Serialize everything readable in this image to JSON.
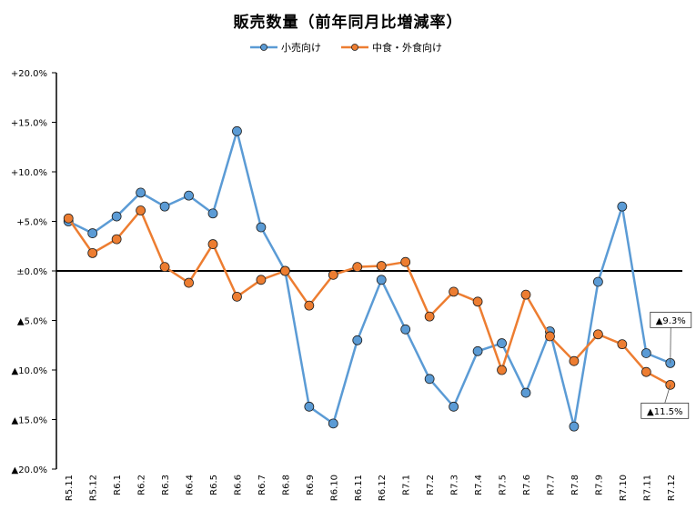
{
  "chart_data": {
    "type": "line",
    "title": "販売数量（前年同月比増減率）",
    "categories": [
      "R5.11",
      "R5.12",
      "R6.1",
      "R6.2",
      "R6.3",
      "R6.4",
      "R6.5",
      "R6.6",
      "R6.7",
      "R6.8",
      "R6.9",
      "R6.10",
      "R6.11",
      "R6.12",
      "R7.1",
      "R7.2",
      "R7.3",
      "R7.4",
      "R7.5",
      "R7.6",
      "R7.7",
      "R7.8",
      "R7.9",
      "R7.10",
      "R7.11",
      "R7.12"
    ],
    "series": [
      {
        "name": "小売向け",
        "color": "#5b9bd5",
        "values": [
          5.0,
          3.8,
          5.5,
          7.9,
          6.5,
          7.6,
          5.8,
          14.1,
          4.4,
          0.0,
          -13.7,
          -15.4,
          -7.0,
          -0.9,
          -5.9,
          -10.9,
          -13.7,
          -8.1,
          -7.3,
          -12.3,
          -6.1,
          -15.7,
          -1.1,
          6.5,
          -8.3,
          -9.3
        ]
      },
      {
        "name": "中食・外食向け",
        "color": "#ed7d31",
        "values": [
          5.3,
          1.8,
          3.2,
          6.1,
          0.4,
          -1.2,
          2.7,
          -2.6,
          -0.9,
          0.0,
          -3.5,
          -0.4,
          0.4,
          0.5,
          0.9,
          -4.6,
          -2.1,
          -3.1,
          -10.0,
          -2.4,
          -6.6,
          -9.1,
          -6.4,
          -7.4,
          -10.2,
          -11.5
        ]
      }
    ],
    "ylim": [
      -20,
      20
    ],
    "yticks": [
      {
        "value": 20,
        "label": "+20.0%"
      },
      {
        "value": 15,
        "label": "+15.0%"
      },
      {
        "value": 10,
        "label": "+10.0%"
      },
      {
        "value": 5,
        "label": "+5.0%"
      },
      {
        "value": 0,
        "label": "±0.0%"
      },
      {
        "value": -5,
        "label": "▲5.0%"
      },
      {
        "value": -10,
        "label": "▲10.0%"
      },
      {
        "value": -15,
        "label": "▲15.0%"
      },
      {
        "value": -20,
        "label": "▲20.0%"
      }
    ],
    "grid": false,
    "legend_position": "top",
    "annotations": [
      {
        "series": 0,
        "index": 25,
        "text": "▲9.3%"
      },
      {
        "series": 1,
        "index": 25,
        "text": "▲11.5%"
      }
    ]
  }
}
